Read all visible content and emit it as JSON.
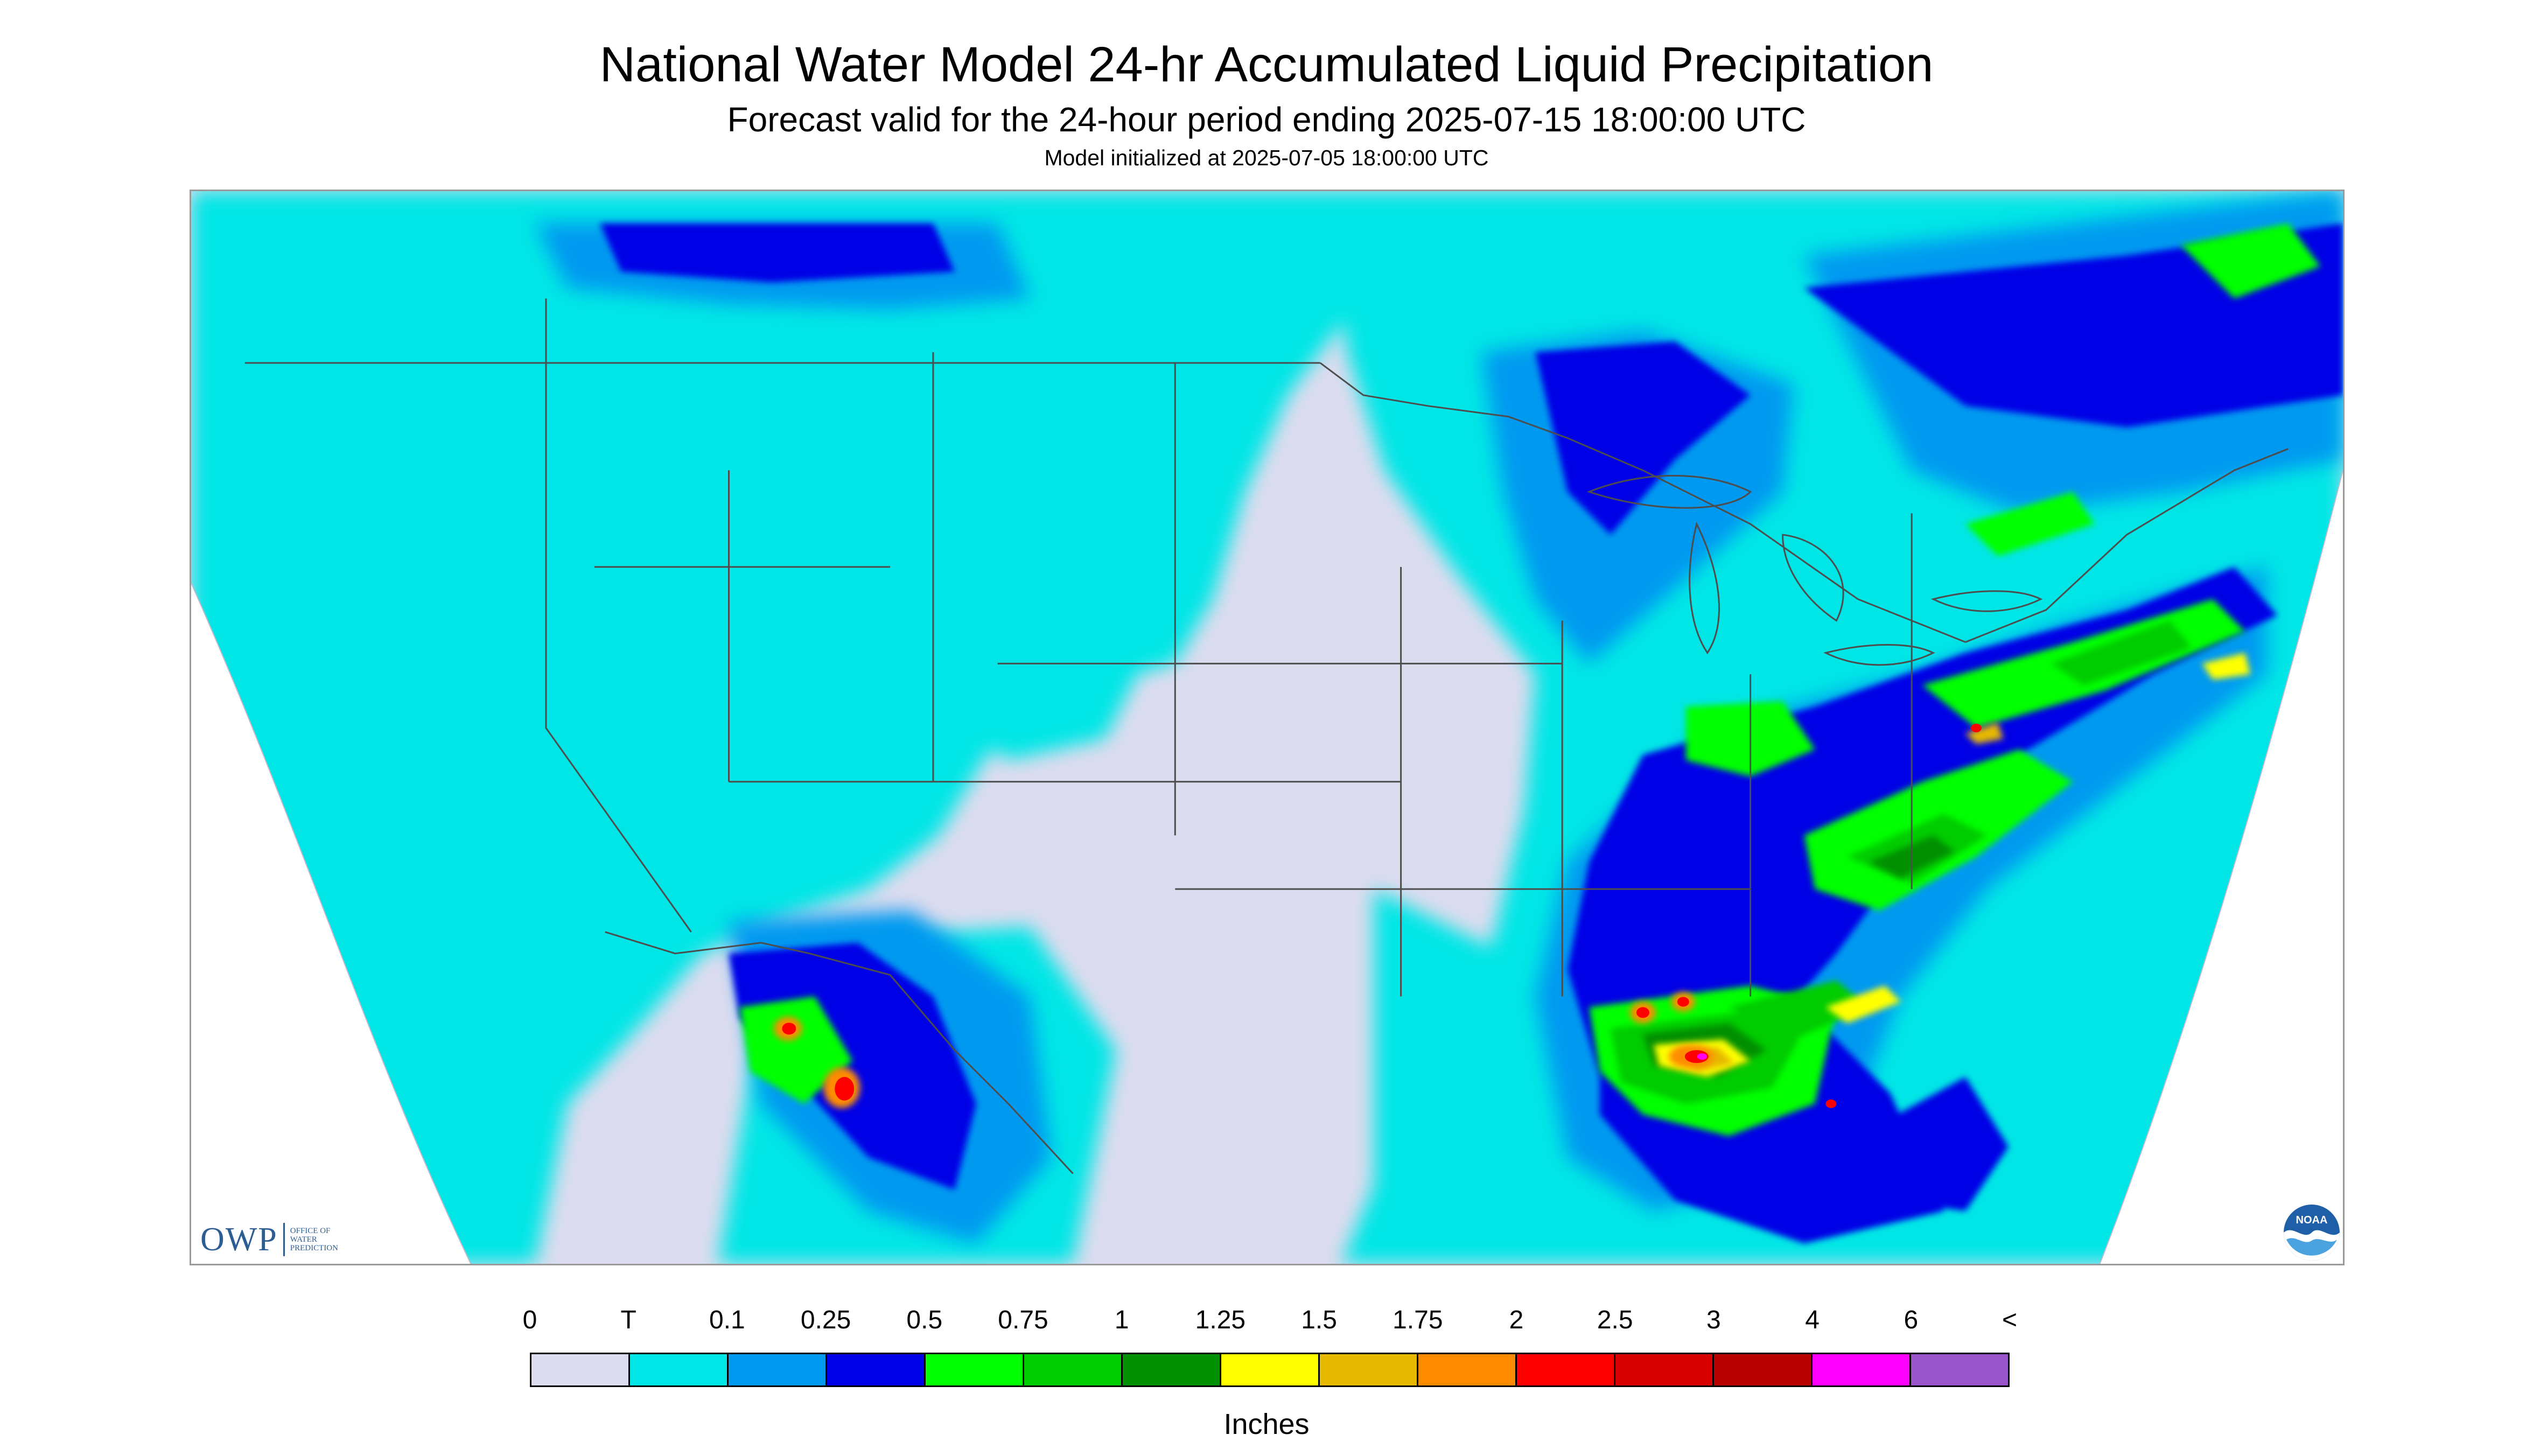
{
  "header": {
    "title": "National Water Model 24-hr Accumulated Liquid Precipitation",
    "subtitle": "Forecast valid for the 24-hour period ending 2025-07-15 18:00:00 UTC",
    "note": "Model initialized at 2025-07-05 18:00:00 UTC"
  },
  "logos": {
    "owp_mark": "OWP",
    "owp_subtitle": "OFFICE OF\nWATER\nPREDICTION",
    "noaa_text": "NOAA"
  },
  "legend": {
    "labels": [
      "0",
      "T",
      "0.1",
      "0.25",
      "0.5",
      "0.75",
      "1",
      "1.25",
      "1.5",
      "1.75",
      "2",
      "2.5",
      "3",
      "4",
      "6",
      "<"
    ],
    "colors": [
      "#dcdcef",
      "#00e6e6",
      "#0099f0",
      "#0000e6",
      "#00ff00",
      "#00cc00",
      "#008f00",
      "#ffff00",
      "#e6b800",
      "#ff8c00",
      "#ff0000",
      "#d90000",
      "#b80000",
      "#ff00ff",
      "#9955cc"
    ],
    "unit": "Inches"
  },
  "map": {
    "background_color": "#dcdcef",
    "outside_color": "#ffffff",
    "boundary_color": "#4d4d4d"
  }
}
